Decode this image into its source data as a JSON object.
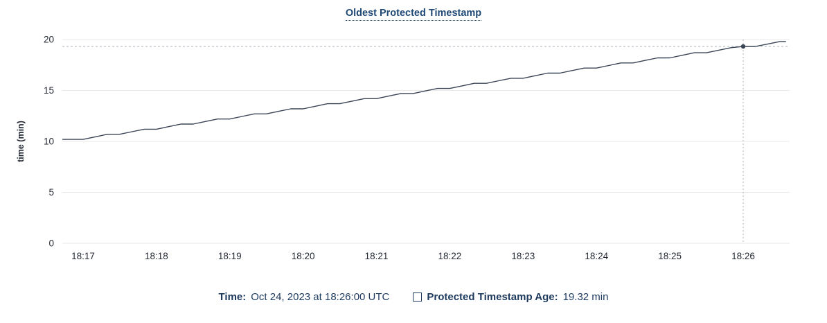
{
  "chart": {
    "title": "Oldest Protected Timestamp",
    "ylabel": "time (min)",
    "footer": {
      "time_label": "Time:",
      "time_value": "Oct 24, 2023 at 18:26:00 UTC",
      "series_label": "Protected Timestamp Age:",
      "series_value": "19.32 min"
    }
  },
  "chart_data": {
    "type": "line",
    "title": "Oldest Protected Timestamp",
    "xlabel": "",
    "ylabel": "time (min)",
    "ylim": [
      0,
      20
    ],
    "yticks": [
      0,
      5,
      10,
      15,
      20
    ],
    "xtick_labels": [
      "18:17",
      "18:18",
      "18:19",
      "18:20",
      "18:21",
      "18:22",
      "18:23",
      "18:24",
      "18:25",
      "18:26"
    ],
    "xtick_seconds": [
      0,
      60,
      120,
      180,
      240,
      300,
      360,
      420,
      480,
      540
    ],
    "x_unit": "seconds since 18:17:00",
    "grid": "horizontal only",
    "legend_position": "bottom center",
    "series": [
      {
        "name": "Protected Timestamp Age",
        "points": [
          [
            -17,
            10.2
          ],
          [
            -10,
            10.2
          ],
          [
            0,
            10.2
          ],
          [
            10,
            10.45
          ],
          [
            20,
            10.7
          ],
          [
            30,
            10.7
          ],
          [
            40,
            10.95
          ],
          [
            50,
            11.2
          ],
          [
            60,
            11.2
          ],
          [
            70,
            11.45
          ],
          [
            80,
            11.7
          ],
          [
            90,
            11.7
          ],
          [
            100,
            11.95
          ],
          [
            110,
            12.2
          ],
          [
            120,
            12.2
          ],
          [
            130,
            12.45
          ],
          [
            140,
            12.7
          ],
          [
            150,
            12.7
          ],
          [
            160,
            12.95
          ],
          [
            170,
            13.2
          ],
          [
            180,
            13.2
          ],
          [
            190,
            13.45
          ],
          [
            200,
            13.7
          ],
          [
            210,
            13.7
          ],
          [
            220,
            13.95
          ],
          [
            230,
            14.2
          ],
          [
            240,
            14.2
          ],
          [
            250,
            14.45
          ],
          [
            260,
            14.7
          ],
          [
            270,
            14.7
          ],
          [
            280,
            14.95
          ],
          [
            290,
            15.2
          ],
          [
            300,
            15.2
          ],
          [
            310,
            15.45
          ],
          [
            320,
            15.7
          ],
          [
            330,
            15.7
          ],
          [
            340,
            15.95
          ],
          [
            350,
            16.2
          ],
          [
            360,
            16.2
          ],
          [
            370,
            16.45
          ],
          [
            380,
            16.7
          ],
          [
            390,
            16.7
          ],
          [
            400,
            16.95
          ],
          [
            410,
            17.2
          ],
          [
            420,
            17.2
          ],
          [
            430,
            17.45
          ],
          [
            440,
            17.7
          ],
          [
            450,
            17.7
          ],
          [
            460,
            17.95
          ],
          [
            470,
            18.2
          ],
          [
            480,
            18.2
          ],
          [
            490,
            18.45
          ],
          [
            500,
            18.7
          ],
          [
            510,
            18.7
          ],
          [
            520,
            18.95
          ],
          [
            530,
            19.2
          ],
          [
            540,
            19.32
          ],
          [
            550,
            19.32
          ],
          [
            560,
            19.55
          ],
          [
            570,
            19.8
          ],
          [
            575,
            19.8
          ]
        ]
      }
    ],
    "highlight": {
      "x_seconds": 540,
      "x_label": "18:26:00",
      "y_value": 19.32,
      "y_label": "19.32 min",
      "crosshair": true
    },
    "colors": {
      "line": "#394455",
      "marker": "#394455",
      "grid": "#e9e9ea",
      "crosshair": "#aab1ba",
      "title": "#1f4975",
      "legend_text": "#1e3a5f",
      "tick_text": "#242a35"
    }
  }
}
